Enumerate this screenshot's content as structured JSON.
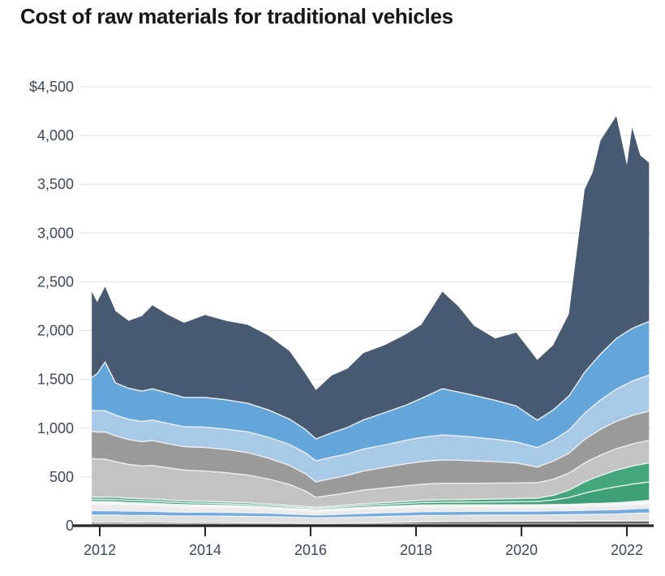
{
  "chart_data": {
    "type": "area",
    "stacked": true,
    "title": "Cost of raw materials for traditional vehicles",
    "xlabel": "",
    "ylabel": "",
    "currency_prefix": "$",
    "grid": true,
    "legend": "none",
    "xlim": [
      2011.85,
      2022.42
    ],
    "ylim": [
      0,
      4500
    ],
    "x_ticks": [
      {
        "value": 2012,
        "label": "2012"
      },
      {
        "value": 2014,
        "label": "2014"
      },
      {
        "value": 2016,
        "label": "2016"
      },
      {
        "value": 2018,
        "label": "2018"
      },
      {
        "value": 2020,
        "label": "2020"
      },
      {
        "value": 2022,
        "label": "2022"
      }
    ],
    "y_ticks": [
      {
        "value": 0,
        "label": "0"
      },
      {
        "value": 500,
        "label": "500"
      },
      {
        "value": 1000,
        "label": "1,000"
      },
      {
        "value": 1500,
        "label": "1,500"
      },
      {
        "value": 2000,
        "label": "2,000"
      },
      {
        "value": 2500,
        "label": "2,500"
      },
      {
        "value": 3000,
        "label": "3,000"
      },
      {
        "value": 3500,
        "label": "3,500"
      },
      {
        "value": 4000,
        "label": "4,000"
      },
      {
        "value": 4500,
        "label": "$4,500"
      }
    ],
    "x": [
      2011.85,
      2011.95,
      2012.1,
      2012.3,
      2012.55,
      2012.8,
      2013.0,
      2013.3,
      2013.6,
      2014.0,
      2014.4,
      2014.8,
      2015.2,
      2015.6,
      2015.9,
      2016.1,
      2016.4,
      2016.7,
      2017.0,
      2017.4,
      2017.8,
      2018.1,
      2018.5,
      2018.8,
      2019.1,
      2019.5,
      2019.9,
      2020.3,
      2020.6,
      2020.9,
      2021.2,
      2021.35,
      2021.5,
      2021.8,
      2022.0,
      2022.1,
      2022.25,
      2022.42
    ],
    "series": [
      {
        "name": "bottom-dark-hairlines",
        "color": "#4f4f4f",
        "pattern": "hairlines",
        "values": [
          35,
          34,
          34,
          35,
          33,
          34,
          35,
          33,
          32,
          33,
          32,
          31,
          30,
          28,
          26,
          25,
          26,
          28,
          30,
          32,
          35,
          38,
          40,
          41,
          42,
          43,
          44,
          45,
          45,
          46,
          48,
          49,
          49,
          50,
          52,
          53,
          54,
          55
        ]
      },
      {
        "name": "pale-gray-lower",
        "color": "#e0e0e0",
        "values": [
          75,
          74,
          74,
          73,
          72,
          71,
          70,
          68,
          67,
          66,
          65,
          64,
          62,
          60,
          57,
          55,
          56,
          58,
          60,
          62,
          64,
          65,
          65,
          65,
          65,
          65,
          65,
          65,
          66,
          66,
          67,
          68,
          68,
          70,
          72,
          73,
          74,
          75
        ]
      },
      {
        "name": "thin-blue-band",
        "color": "#74abdf",
        "values": [
          45,
          46,
          46,
          45,
          44,
          43,
          42,
          41,
          40,
          40,
          39,
          38,
          36,
          33,
          31,
          30,
          32,
          34,
          36,
          38,
          39,
          40,
          40,
          40,
          40,
          40,
          40,
          40,
          41,
          41,
          42,
          43,
          44,
          45,
          46,
          47,
          48,
          50
        ]
      },
      {
        "name": "pale-gray-upper",
        "color": "#ebebeb",
        "values": [
          60,
          59,
          59,
          58,
          56,
          54,
          52,
          50,
          48,
          46,
          44,
          42,
          38,
          34,
          32,
          30,
          32,
          34,
          36,
          38,
          39,
          40,
          40,
          39,
          38,
          37,
          36,
          35,
          35,
          35,
          35,
          35,
          35,
          35,
          36,
          37,
          38,
          40
        ]
      },
      {
        "name": "white-band",
        "color": "#f7f7f7",
        "values": [
          35,
          35,
          35,
          34,
          33,
          32,
          31,
          30,
          29,
          28,
          28,
          27,
          26,
          25,
          25,
          25,
          26,
          27,
          28,
          29,
          29,
          30,
          30,
          30,
          30,
          30,
          30,
          30,
          31,
          31,
          32,
          33,
          33,
          35,
          36,
          37,
          38,
          40
        ]
      },
      {
        "name": "green-lower",
        "color": "#3f9f76",
        "values": [
          22,
          22,
          22,
          23,
          22,
          21,
          21,
          20,
          19,
          18,
          17,
          16,
          15,
          14,
          13,
          13,
          14,
          16,
          18,
          20,
          22,
          24,
          25,
          26,
          27,
          29,
          31,
          33,
          45,
          70,
          110,
          125,
          140,
          165,
          175,
          180,
          185,
          190
        ]
      },
      {
        "name": "green-upper",
        "color": "#43a67d",
        "values": [
          23,
          23,
          23,
          24,
          23,
          22,
          22,
          21,
          20,
          19,
          18,
          17,
          16,
          14,
          13,
          12,
          13,
          15,
          17,
          19,
          21,
          23,
          25,
          26,
          28,
          30,
          32,
          35,
          48,
          75,
          115,
          130,
          145,
          170,
          180,
          185,
          190,
          195
        ]
      },
      {
        "name": "light-gray",
        "color": "#c3c3c3",
        "values": [
          395,
          390,
          390,
          365,
          345,
          335,
          345,
          330,
          315,
          310,
          300,
          285,
          255,
          215,
          160,
          100,
          115,
          125,
          140,
          150,
          160,
          165,
          170,
          168,
          165,
          162,
          160,
          158,
          165,
          175,
          195,
          202,
          210,
          220,
          224,
          226,
          228,
          230
        ]
      },
      {
        "name": "medium-gray",
        "color": "#9a9a9a",
        "values": [
          275,
          278,
          278,
          265,
          255,
          250,
          255,
          248,
          240,
          242,
          238,
          230,
          215,
          195,
          175,
          160,
          170,
          180,
          195,
          210,
          225,
          232,
          240,
          236,
          230,
          220,
          205,
          160,
          185,
          205,
          240,
          252,
          265,
          280,
          288,
          292,
          296,
          300
        ]
      },
      {
        "name": "light-blue",
        "color": "#a9cae6",
        "values": [
          215,
          218,
          218,
          212,
          208,
          206,
          210,
          208,
          205,
          208,
          210,
          212,
          214,
          215,
          215,
          215,
          218,
          220,
          225,
          230,
          240,
          248,
          255,
          250,
          242,
          230,
          215,
          200,
          215,
          235,
          270,
          285,
          300,
          330,
          345,
          352,
          360,
          370
        ]
      },
      {
        "name": "medium-blue",
        "color": "#64a5da",
        "values": [
          340,
          380,
          500,
          330,
          318,
          312,
          320,
          310,
          300,
          305,
          300,
          295,
          280,
          260,
          240,
          225,
          250,
          270,
          300,
          330,
          360,
          400,
          475,
          450,
          430,
          400,
          370,
          280,
          310,
          350,
          420,
          445,
          470,
          520,
          535,
          540,
          545,
          550
        ]
      },
      {
        "name": "dark-slate-blue",
        "color": "#475a71",
        "values": [
          880,
          733,
          771,
          736,
          691,
          770,
          857,
          801,
          765,
          845,
          809,
          803,
          763,
          697,
          573,
          500,
          588,
          603,
          685,
          692,
          726,
          755,
          995,
          879,
          713,
          634,
          752,
          619,
          664,
          841,
          1876,
          1953,
          2191,
          2280,
          1711,
          2058,
          1744,
          1625
        ]
      }
    ],
    "style": {
      "background": "#ffffff",
      "gridline_color": "#dfdfdf",
      "separator_color": "#eef0f2",
      "axis_color": "#262626",
      "tick_label_color": "#3d4955",
      "title_color": "#161616",
      "hairline_base": "#bdbdbd",
      "hairline_stripe": "#4f4f4f"
    }
  }
}
